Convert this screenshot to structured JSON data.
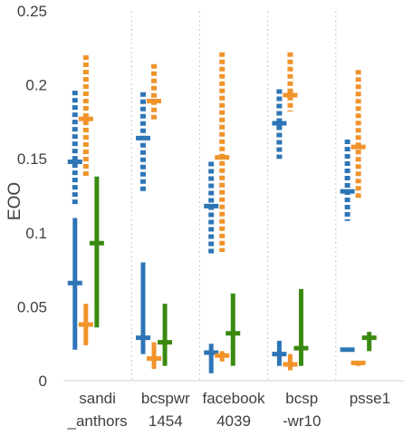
{
  "chart_data": {
    "type": "range",
    "ylabel": "EOO",
    "ylim": [
      0,
      0.25
    ],
    "yticks": [
      0,
      0.05,
      0.1,
      0.15,
      0.2,
      0.25
    ],
    "ytick_labels": [
      "0",
      "0.05",
      "0.1",
      "0.15",
      "0.2",
      "0.25"
    ],
    "categories": [
      [
        "sandi",
        "_anthors"
      ],
      [
        "bcspwr",
        "1454"
      ],
      [
        "facebook",
        "4039"
      ],
      [
        "bcsp",
        "-wr10"
      ],
      [
        "psse1",
        ""
      ]
    ],
    "category_separators": "dotted",
    "series": [
      {
        "color": "#2e75b6",
        "style": "dashed",
        "low": [
          0.118,
          0.128,
          0.086,
          0.15,
          0.108
        ],
        "mid": [
          0.148,
          0.164,
          0.118,
          0.174,
          0.128
        ],
        "high": [
          0.196,
          0.195,
          0.148,
          0.197,
          0.163
        ]
      },
      {
        "color": "#f0932b",
        "style": "dashed",
        "low": [
          0.138,
          0.175,
          0.087,
          0.182,
          0.123
        ],
        "mid": [
          0.177,
          0.189,
          0.151,
          0.193,
          0.158
        ],
        "high": [
          0.22,
          0.214,
          0.222,
          0.222,
          0.21
        ]
      },
      {
        "color": "#2e75b6",
        "style": "solid",
        "low": [
          0.021,
          0.018,
          0.005,
          0.01,
          0.02
        ],
        "mid": [
          0.066,
          0.029,
          0.019,
          0.018,
          0.021
        ],
        "high": [
          0.11,
          0.08,
          0.025,
          0.027,
          0.022
        ]
      },
      {
        "color": "#f0932b",
        "style": "solid",
        "low": [
          0.024,
          0.008,
          0.013,
          0.007,
          0.01
        ],
        "mid": [
          0.038,
          0.015,
          0.017,
          0.011,
          0.012
        ],
        "high": [
          0.052,
          0.026,
          0.02,
          0.018,
          0.013
        ]
      },
      {
        "color": "#3a8a12",
        "style": "solid",
        "low": [
          0.036,
          0.01,
          0.01,
          0.01,
          0.02
        ],
        "mid": [
          0.093,
          0.026,
          0.032,
          0.022,
          0.029
        ],
        "high": [
          0.138,
          0.052,
          0.059,
          0.062,
          0.033
        ]
      }
    ]
  }
}
